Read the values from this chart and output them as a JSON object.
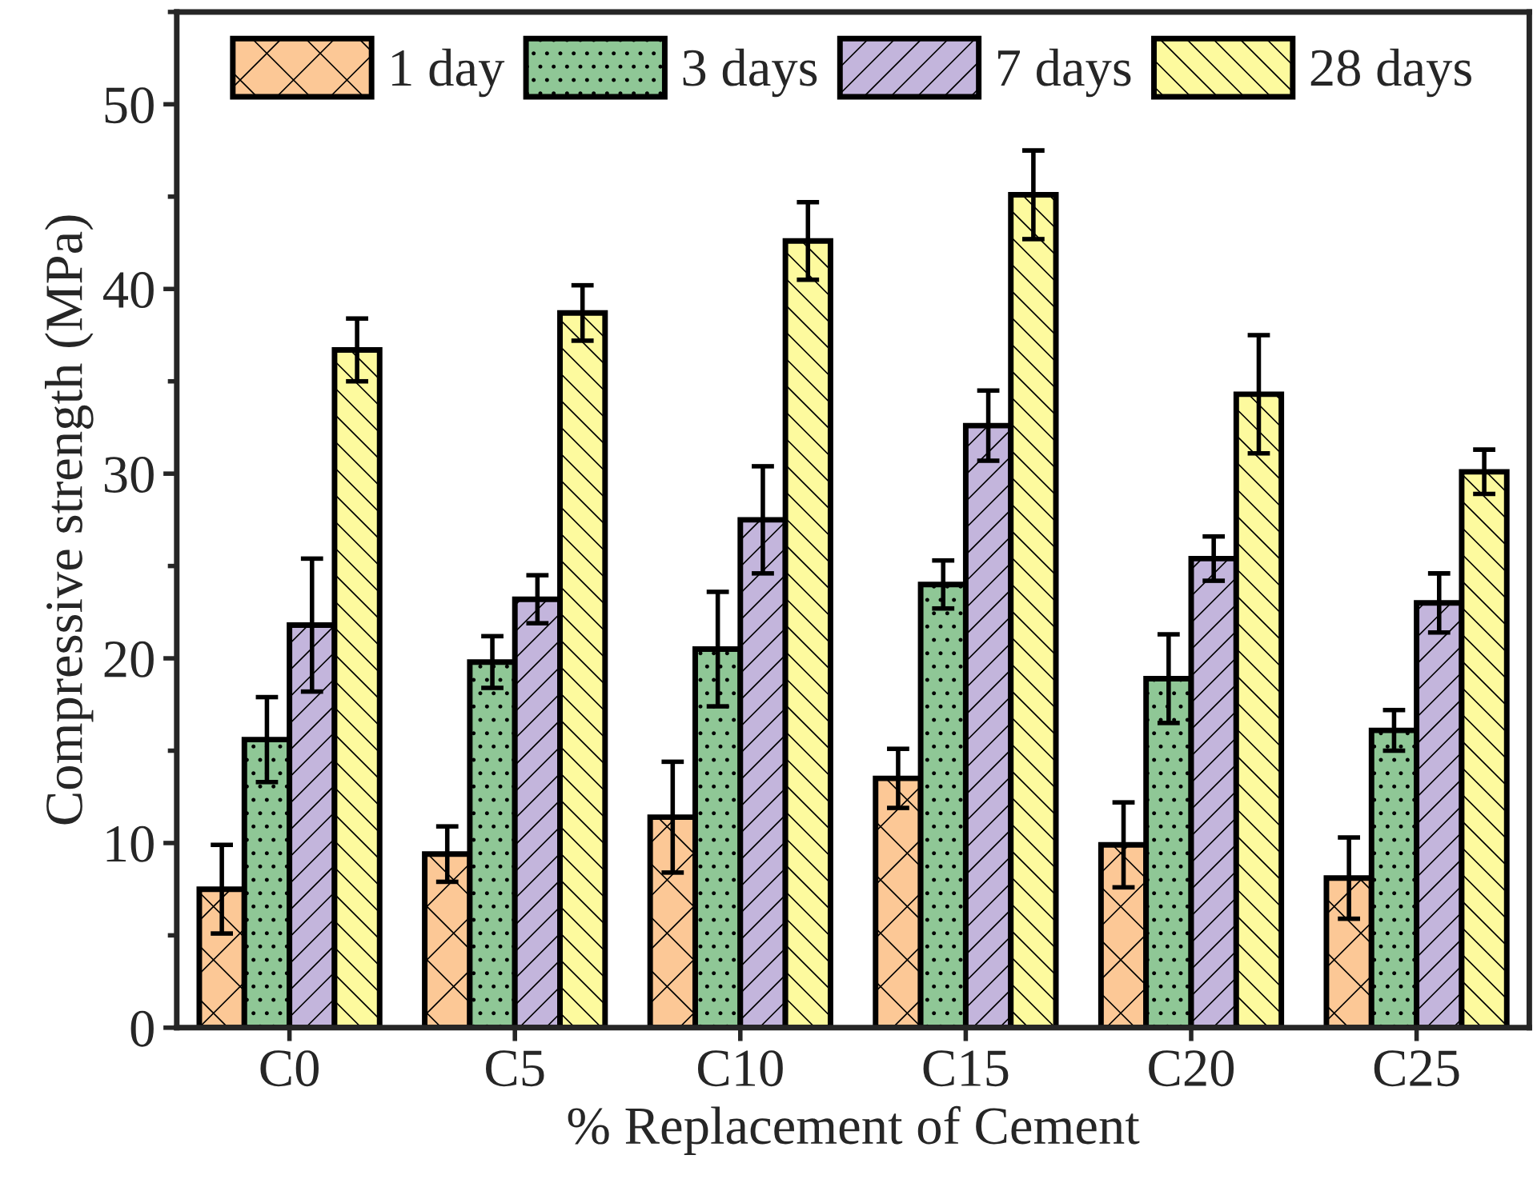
{
  "chart_data": {
    "type": "bar",
    "xlabel": "% Replacement of Cement",
    "ylabel": "Compressive strength (MPa)",
    "categories": [
      "C0",
      "C5",
      "C10",
      "C15",
      "C20",
      "C25"
    ],
    "series": [
      {
        "name": "1 day",
        "color": "#fcc896",
        "values": [
          7.5,
          9.4,
          11.4,
          13.5,
          9.9,
          8.1
        ],
        "errors": [
          2.4,
          1.5,
          3.0,
          1.6,
          2.3,
          2.2
        ]
      },
      {
        "name": "3 days",
        "color": "#8fc796",
        "values": [
          15.6,
          19.8,
          20.5,
          24.0,
          18.9,
          16.1
        ],
        "errors": [
          2.3,
          1.4,
          3.1,
          1.3,
          2.4,
          1.1
        ]
      },
      {
        "name": "7 days",
        "color": "#c3b5dc",
        "values": [
          21.8,
          23.2,
          27.5,
          32.6,
          25.4,
          23.0
        ],
        "errors": [
          3.6,
          1.3,
          2.9,
          1.9,
          1.2,
          1.6
        ]
      },
      {
        "name": "28 days",
        "color": "#fdfa9e",
        "values": [
          36.7,
          38.7,
          42.6,
          45.1,
          34.3,
          30.1
        ],
        "errors": [
          1.7,
          1.5,
          2.1,
          2.4,
          3.2,
          1.2
        ]
      }
    ],
    "ylim": [
      0,
      55
    ],
    "yticks": [
      0,
      10,
      20,
      30,
      40,
      50
    ],
    "grid": false,
    "legend": "top"
  }
}
